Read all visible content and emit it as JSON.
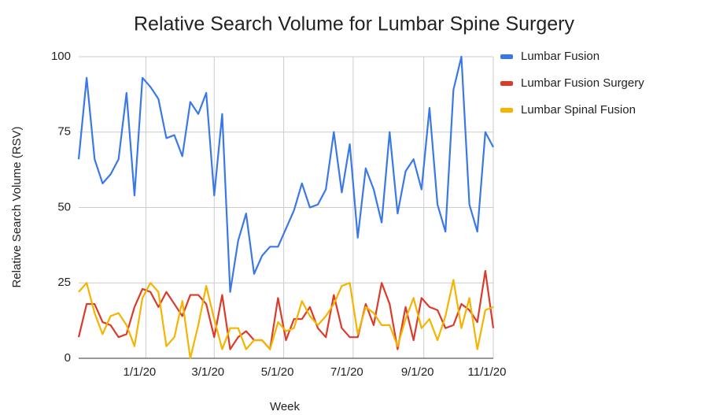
{
  "chart_data": {
    "type": "line",
    "title": "Relative Search Volume for Lumbar Spine Surgery",
    "x_label": "Week",
    "y_label": "Relative Search Volume (RSV)",
    "x": [
      "2019-11-03",
      "2019-11-10",
      "2019-11-17",
      "2019-11-24",
      "2019-12-01",
      "2019-12-08",
      "2019-12-15",
      "2019-12-22",
      "2019-12-29",
      "2020-01-05",
      "2020-01-12",
      "2020-01-19",
      "2020-01-26",
      "2020-02-02",
      "2020-02-09",
      "2020-02-16",
      "2020-02-23",
      "2020-03-01",
      "2020-03-08",
      "2020-03-15",
      "2020-03-22",
      "2020-03-29",
      "2020-04-05",
      "2020-04-12",
      "2020-04-19",
      "2020-04-26",
      "2020-05-03",
      "2020-05-10",
      "2020-05-17",
      "2020-05-24",
      "2020-05-31",
      "2020-06-07",
      "2020-06-14",
      "2020-06-21",
      "2020-06-28",
      "2020-07-05",
      "2020-07-12",
      "2020-07-19",
      "2020-07-26",
      "2020-08-02",
      "2020-08-09",
      "2020-08-16",
      "2020-08-23",
      "2020-08-30",
      "2020-09-06",
      "2020-09-13",
      "2020-09-20",
      "2020-09-27",
      "2020-10-04",
      "2020-10-11",
      "2020-10-18",
      "2020-10-25",
      "2020-11-01"
    ],
    "series": [
      {
        "name": "Lumbar Fusion",
        "color": "#3b78e7",
        "values": [
          66,
          93,
          66,
          58,
          61,
          66,
          88,
          54,
          93,
          90,
          86,
          73,
          74,
          67,
          85,
          81,
          88,
          54,
          81,
          22,
          39,
          48,
          28,
          34,
          37,
          37,
          43,
          49,
          58,
          50,
          51,
          56,
          75,
          55,
          71,
          40,
          63,
          56,
          45,
          75,
          48,
          62,
          66,
          56,
          83,
          51,
          42,
          89,
          100,
          51,
          42,
          75,
          70
        ]
      },
      {
        "name": "Lumbar Fusion Surgery",
        "color": "#db3b2b",
        "values": [
          7,
          18,
          18,
          12,
          11,
          7,
          8,
          17,
          23,
          22,
          17,
          22,
          18,
          14,
          21,
          21,
          18,
          7,
          21,
          3,
          7,
          9,
          6,
          6,
          3,
          20,
          6,
          13,
          13,
          17,
          10,
          7,
          21,
          10,
          7,
          7,
          18,
          11,
          25,
          18,
          3,
          17,
          6,
          20,
          17,
          16,
          10,
          11,
          18,
          16,
          12,
          29,
          10
        ]
      },
      {
        "name": "Lumbar Spinal Fusion",
        "color": "#f4b400",
        "values": [
          22,
          25,
          15,
          8,
          14,
          15,
          11,
          4,
          20,
          25,
          22,
          4,
          7,
          19,
          0,
          11,
          24,
          13,
          3,
          10,
          10,
          3,
          6,
          6,
          3,
          12,
          9,
          10,
          19,
          14,
          11,
          14,
          18,
          24,
          25,
          8,
          17,
          15,
          11,
          11,
          4,
          13,
          20,
          10,
          13,
          6,
          14,
          26,
          10,
          20,
          3,
          16,
          17
        ]
      }
    ],
    "xlim": [
      "2019-11-03",
      "2020-11-01"
    ],
    "xticks": [
      {
        "value": "2020-01-01",
        "label": "1/1/20"
      },
      {
        "value": "2020-03-01",
        "label": "3/1/20"
      },
      {
        "value": "2020-05-01",
        "label": "5/1/20"
      },
      {
        "value": "2020-07-01",
        "label": "7/1/20"
      },
      {
        "value": "2020-09-01",
        "label": "9/1/20"
      },
      {
        "value": "2020-11-01",
        "label": "11/1/20"
      }
    ],
    "ylim": [
      0,
      100
    ],
    "yticks": [
      0,
      25,
      50,
      75,
      100
    ],
    "grid": true,
    "legend": "right"
  }
}
